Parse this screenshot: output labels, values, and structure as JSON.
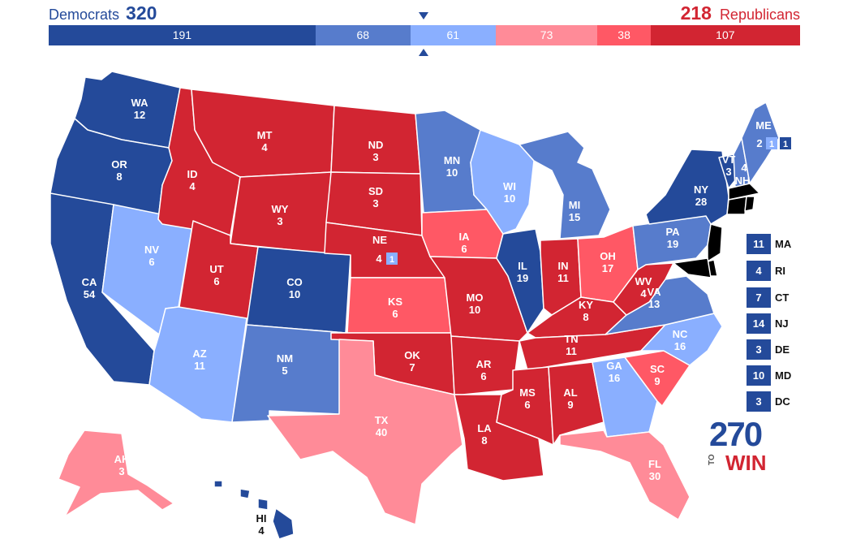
{
  "header": {
    "dem_label": "Democrats",
    "dem_total": "320",
    "rep_total": "218",
    "rep_label": "Republicans"
  },
  "ev_bar": [
    {
      "category": "Safe Democratic",
      "value": 191,
      "color": "#244a9a"
    },
    {
      "category": "Likely Democratic",
      "value": 68,
      "color": "#577ccc"
    },
    {
      "category": "Leans Democratic",
      "value": 61,
      "color": "#8aafff"
    },
    {
      "category": "Leans Republican",
      "value": 73,
      "color": "#ff8b98"
    },
    {
      "category": "Likely Republican",
      "value": 38,
      "color": "#ff5865"
    },
    {
      "category": "Safe Republican",
      "value": 107,
      "color": "#d22532"
    }
  ],
  "colors": {
    "safe_dem": "#244a9a",
    "likely_dem": "#577ccc",
    "lean_dem": "#8aafff",
    "lean_rep": "#ff8b98",
    "likely_rep": "#ff5865",
    "safe_rep": "#d22532"
  },
  "states": {
    "WA": {
      "label": "WA",
      "ev": "12",
      "rating": "safe_dem"
    },
    "OR": {
      "label": "OR",
      "ev": "8",
      "rating": "safe_dem"
    },
    "CA": {
      "label": "CA",
      "ev": "54",
      "rating": "safe_dem"
    },
    "NV": {
      "label": "NV",
      "ev": "6",
      "rating": "lean_dem"
    },
    "ID": {
      "label": "ID",
      "ev": "4",
      "rating": "safe_rep"
    },
    "MT": {
      "label": "MT",
      "ev": "4",
      "rating": "safe_rep"
    },
    "WY": {
      "label": "WY",
      "ev": "3",
      "rating": "safe_rep"
    },
    "UT": {
      "label": "UT",
      "ev": "6",
      "rating": "safe_rep"
    },
    "AZ": {
      "label": "AZ",
      "ev": "11",
      "rating": "lean_dem"
    },
    "CO": {
      "label": "CO",
      "ev": "10",
      "rating": "safe_dem"
    },
    "NM": {
      "label": "NM",
      "ev": "5",
      "rating": "likely_dem"
    },
    "ND": {
      "label": "ND",
      "ev": "3",
      "rating": "safe_rep"
    },
    "SD": {
      "label": "SD",
      "ev": "3",
      "rating": "safe_rep"
    },
    "NE": {
      "label": "NE",
      "ev": "4",
      "rating": "safe_rep",
      "district_ev": "1",
      "district_rating": "lean_dem"
    },
    "KS": {
      "label": "KS",
      "ev": "6",
      "rating": "likely_rep"
    },
    "OK": {
      "label": "OK",
      "ev": "7",
      "rating": "safe_rep"
    },
    "TX": {
      "label": "TX",
      "ev": "40",
      "rating": "lean_rep"
    },
    "MN": {
      "label": "MN",
      "ev": "10",
      "rating": "likely_dem"
    },
    "IA": {
      "label": "IA",
      "ev": "6",
      "rating": "likely_rep"
    },
    "MO": {
      "label": "MO",
      "ev": "10",
      "rating": "safe_rep"
    },
    "AR": {
      "label": "AR",
      "ev": "6",
      "rating": "safe_rep"
    },
    "LA": {
      "label": "LA",
      "ev": "8",
      "rating": "safe_rep"
    },
    "WI": {
      "label": "WI",
      "ev": "10",
      "rating": "lean_dem"
    },
    "IL": {
      "label": "IL",
      "ev": "19",
      "rating": "safe_dem"
    },
    "MI": {
      "label": "MI",
      "ev": "15",
      "rating": "likely_dem"
    },
    "IN": {
      "label": "IN",
      "ev": "11",
      "rating": "safe_rep"
    },
    "OH": {
      "label": "OH",
      "ev": "17",
      "rating": "likely_rep"
    },
    "KY": {
      "label": "KY",
      "ev": "8",
      "rating": "safe_rep"
    },
    "TN": {
      "label": "TN",
      "ev": "11",
      "rating": "safe_rep"
    },
    "MS": {
      "label": "MS",
      "ev": "6",
      "rating": "safe_rep"
    },
    "AL": {
      "label": "AL",
      "ev": "9",
      "rating": "safe_rep"
    },
    "GA": {
      "label": "GA",
      "ev": "16",
      "rating": "lean_dem"
    },
    "FL": {
      "label": "FL",
      "ev": "30",
      "rating": "lean_rep"
    },
    "SC": {
      "label": "SC",
      "ev": "9",
      "rating": "likely_rep"
    },
    "NC": {
      "label": "NC",
      "ev": "16",
      "rating": "lean_dem"
    },
    "VA": {
      "label": "VA",
      "ev": "13",
      "rating": "likely_dem"
    },
    "WV": {
      "label": "WV",
      "ev": "4",
      "rating": "safe_rep"
    },
    "PA": {
      "label": "PA",
      "ev": "19",
      "rating": "likely_dem"
    },
    "NY": {
      "label": "NY",
      "ev": "28",
      "rating": "safe_dem"
    },
    "VT": {
      "label": "VT",
      "ev": "3",
      "rating": "safe_dem"
    },
    "NH": {
      "label": "NH",
      "ev": "4",
      "rating": "likely_dem"
    },
    "ME": {
      "label": "ME",
      "ev": "2",
      "rating": "likely_dem",
      "district1_ev": "1",
      "district1_rating": "lean_dem",
      "district2_ev": "1",
      "district2_rating": "safe_dem"
    },
    "AK": {
      "label": "AK",
      "ev": "3",
      "rating": "lean_rep"
    },
    "HI": {
      "label": "HI",
      "ev": "4",
      "rating": "safe_dem"
    }
  },
  "small_states": [
    {
      "label": "MA",
      "ev": "11",
      "rating": "safe_dem"
    },
    {
      "label": "RI",
      "ev": "4",
      "rating": "safe_dem"
    },
    {
      "label": "CT",
      "ev": "7",
      "rating": "safe_dem"
    },
    {
      "label": "NJ",
      "ev": "14",
      "rating": "safe_dem"
    },
    {
      "label": "DE",
      "ev": "3",
      "rating": "safe_dem"
    },
    {
      "label": "MD",
      "ev": "10",
      "rating": "safe_dem"
    },
    {
      "label": "DC",
      "ev": "3",
      "rating": "safe_dem"
    }
  ],
  "logo": {
    "number": "270",
    "to": "TO",
    "win": "WIN"
  }
}
